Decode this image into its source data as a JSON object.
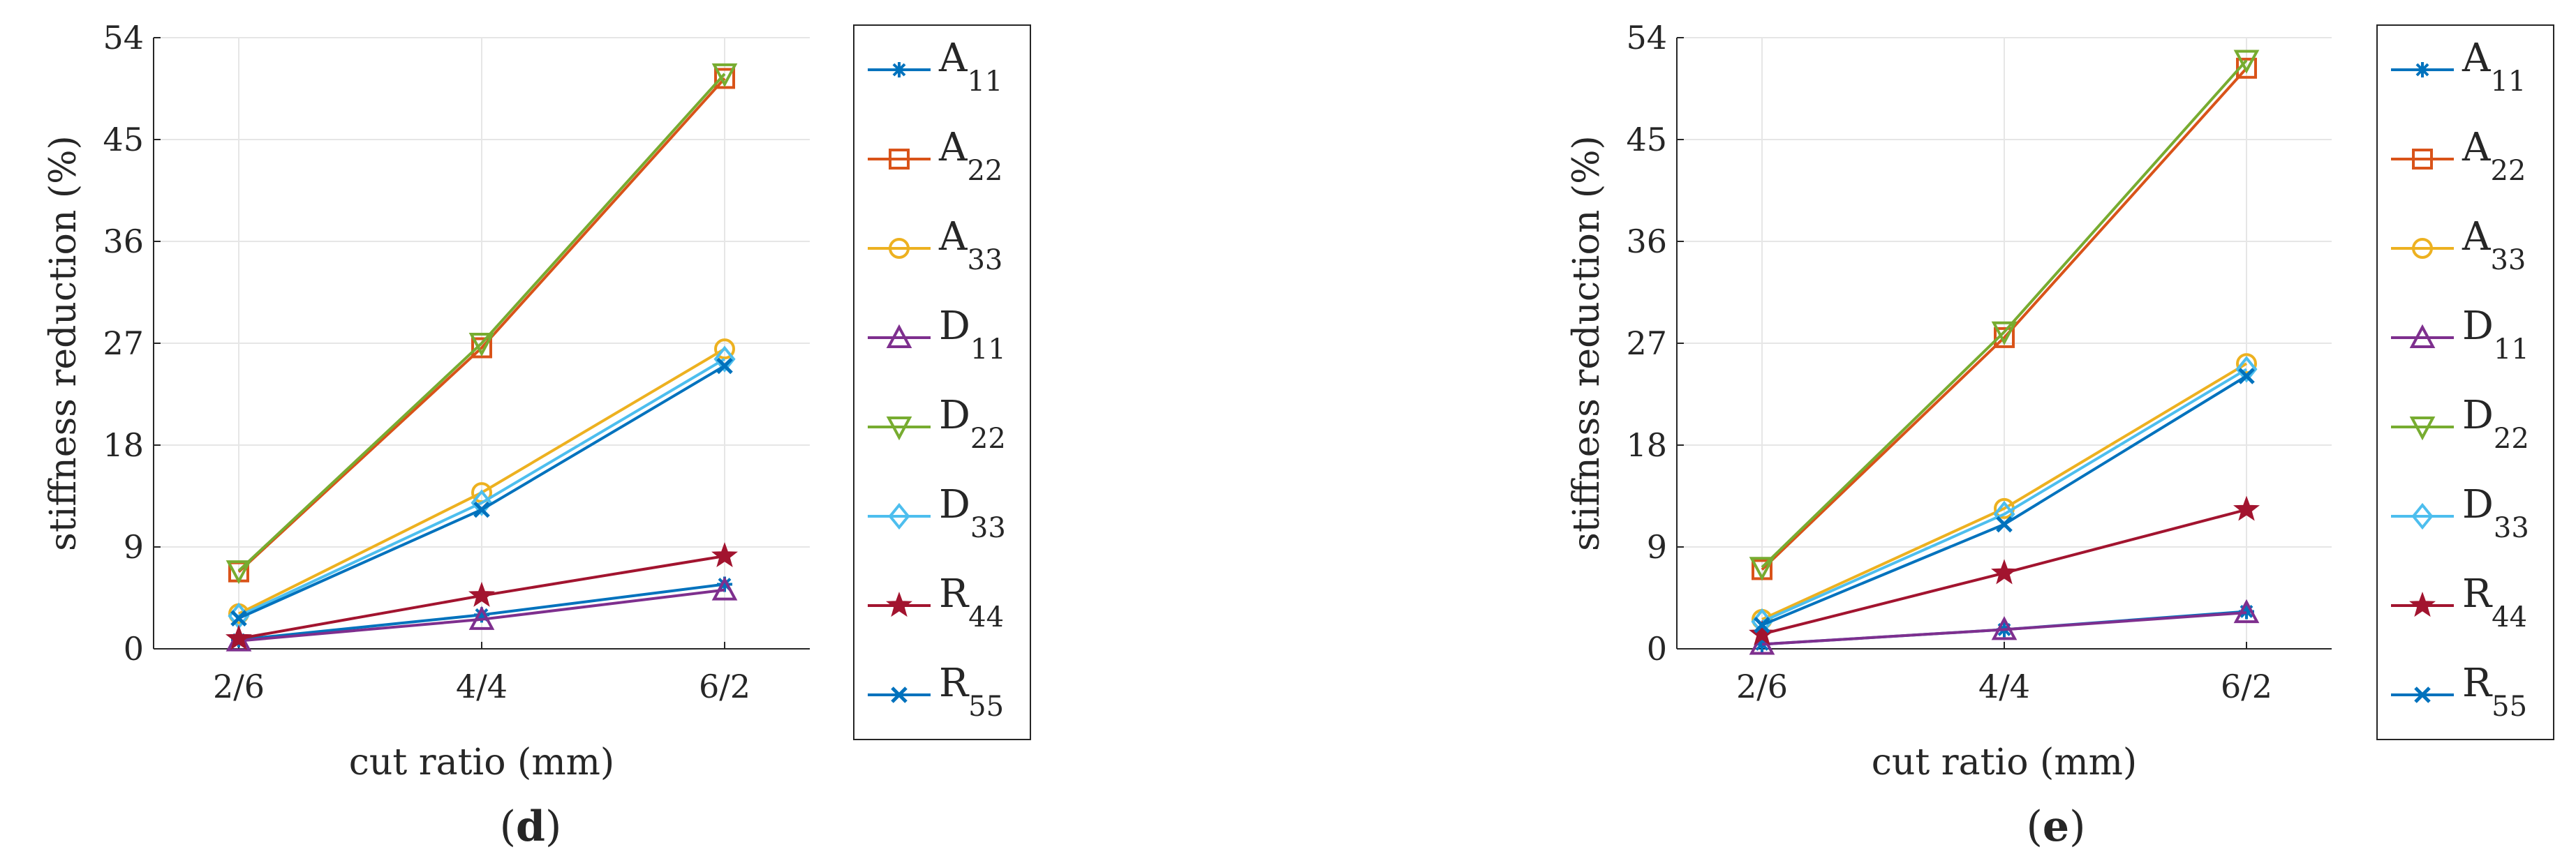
{
  "panels": [
    {
      "label_open": "(",
      "label_letter": "d",
      "label_close": ")"
    },
    {
      "label_open": "(",
      "label_letter": "e",
      "label_close": ")"
    }
  ],
  "colors": {
    "A11": "#0072BD",
    "A22": "#D95319",
    "A33": "#EDB120",
    "D11": "#7E2F8E",
    "D22": "#77AC30",
    "D33": "#4DBEEE",
    "R44": "#A2142F",
    "R55": "#0072BD"
  },
  "chart_data": [
    {
      "type": "line",
      "title": "",
      "xlabel": "cut ratio (mm)",
      "ylabel": "stiffness reduction (%)",
      "categories": [
        "2/6",
        "4/4",
        "6/2"
      ],
      "ylim": [
        0,
        54
      ],
      "yticks": [
        "0",
        "9",
        "18",
        "27",
        "36",
        "45",
        "54"
      ],
      "grid": true,
      "legend_position": "right-outside",
      "series": [
        {
          "name": "A",
          "sub": "11",
          "color": "#0072BD",
          "marker": "asterisk",
          "values": [
            0.8,
            3.0,
            5.7
          ]
        },
        {
          "name": "A",
          "sub": "22",
          "color": "#D95319",
          "marker": "square",
          "values": [
            6.8,
            26.6,
            50.4
          ]
        },
        {
          "name": "A",
          "sub": "33",
          "color": "#EDB120",
          "marker": "circle",
          "values": [
            3.1,
            13.8,
            26.5
          ]
        },
        {
          "name": "D",
          "sub": "11",
          "color": "#7E2F8E",
          "marker": "triangle-up",
          "values": [
            0.7,
            2.6,
            5.2
          ]
        },
        {
          "name": "D",
          "sub": "22",
          "color": "#77AC30",
          "marker": "triangle-down",
          "values": [
            6.9,
            27.0,
            50.8
          ]
        },
        {
          "name": "D",
          "sub": "33",
          "color": "#4DBEEE",
          "marker": "diamond",
          "values": [
            2.9,
            12.9,
            25.6
          ]
        },
        {
          "name": "R",
          "sub": "44",
          "color": "#A2142F",
          "marker": "star",
          "values": [
            0.9,
            4.7,
            8.2
          ]
        },
        {
          "name": "R",
          "sub": "55",
          "color": "#0072BD",
          "marker": "x",
          "values": [
            2.7,
            12.3,
            25.0
          ]
        }
      ]
    },
    {
      "type": "line",
      "title": "",
      "xlabel": "cut ratio (mm)",
      "ylabel": "stiffness reduction (%)",
      "categories": [
        "2/6",
        "4/4",
        "6/2"
      ],
      "ylim": [
        0,
        54
      ],
      "yticks": [
        "0",
        "9",
        "18",
        "27",
        "36",
        "45",
        "54"
      ],
      "grid": true,
      "legend_position": "right-outside",
      "series": [
        {
          "name": "A",
          "sub": "11",
          "color": "#0072BD",
          "marker": "asterisk",
          "values": [
            0.4,
            1.7,
            3.3
          ]
        },
        {
          "name": "A",
          "sub": "22",
          "color": "#D95319",
          "marker": "square",
          "values": [
            7.0,
            27.5,
            51.3
          ]
        },
        {
          "name": "A",
          "sub": "33",
          "color": "#EDB120",
          "marker": "circle",
          "values": [
            2.6,
            12.4,
            25.2
          ]
        },
        {
          "name": "D",
          "sub": "11",
          "color": "#7E2F8E",
          "marker": "triangle-up",
          "values": [
            0.4,
            1.7,
            3.2
          ]
        },
        {
          "name": "D",
          "sub": "22",
          "color": "#77AC30",
          "marker": "triangle-down",
          "values": [
            7.2,
            28.0,
            52.0
          ]
        },
        {
          "name": "D",
          "sub": "33",
          "color": "#4DBEEE",
          "marker": "diamond",
          "values": [
            2.4,
            11.9,
            24.7
          ]
        },
        {
          "name": "R",
          "sub": "44",
          "color": "#A2142F",
          "marker": "star",
          "values": [
            1.3,
            6.7,
            12.3
          ]
        },
        {
          "name": "R",
          "sub": "55",
          "color": "#0072BD",
          "marker": "x",
          "values": [
            2.1,
            11.0,
            24.1
          ]
        }
      ]
    }
  ]
}
